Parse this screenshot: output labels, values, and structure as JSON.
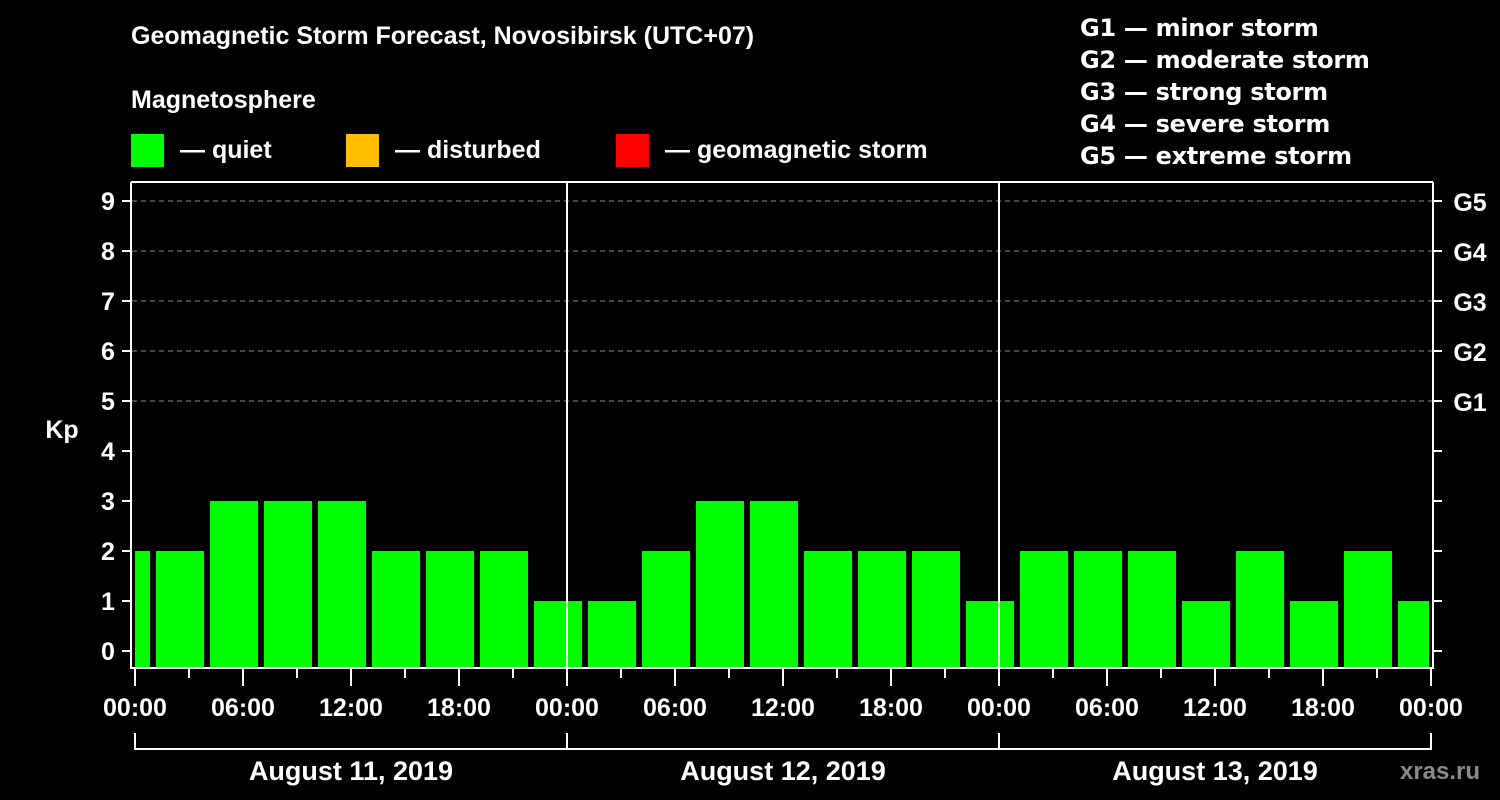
{
  "title": "Geomagnetic Storm Forecast, Novosibirsk (UTC+07)",
  "magnetosphere_label": "Magnetosphere",
  "legend": [
    {
      "label": "— quiet",
      "color": "#00ff00"
    },
    {
      "label": "— disturbed",
      "color": "#ffbf00"
    },
    {
      "label": "— geomagnetic storm",
      "color": "#ff0000"
    }
  ],
  "g_scale": [
    "G1 — minor storm",
    "G2 — moderate storm",
    "G3 — strong storm",
    "G4 — severe storm",
    "G5 — extreme storm"
  ],
  "watermark": "xras.ru",
  "chart_data": {
    "type": "bar",
    "title": "Geomagnetic Storm Forecast, Novosibirsk (UTC+07)",
    "xlabel": "",
    "ylabel": "Kp",
    "ylim": [
      0,
      9
    ],
    "yticks": [
      0,
      1,
      2,
      3,
      4,
      5,
      6,
      7,
      8,
      9
    ],
    "right_axis_labels": {
      "5": "G1",
      "6": "G2",
      "7": "G3",
      "8": "G4",
      "9": "G5"
    },
    "grid": "dashed horizontal at Kp 5-9",
    "xtick_labels": [
      "00:00",
      "06:00",
      "12:00",
      "18:00",
      "00:00",
      "06:00",
      "12:00",
      "18:00",
      "00:00",
      "06:00",
      "12:00",
      "18:00",
      "00:00"
    ],
    "date_labels": [
      "August 11, 2019",
      "August 12, 2019",
      "August 13, 2019"
    ],
    "interval_hours": 3,
    "first_interval_start": "August 10, 2019 22:00",
    "categories": [
      "22:00",
      "01:00",
      "04:00",
      "07:00",
      "10:00",
      "13:00",
      "16:00",
      "19:00",
      "22:00",
      "01:00",
      "04:00",
      "07:00",
      "10:00",
      "13:00",
      "16:00",
      "19:00",
      "22:00",
      "01:00",
      "04:00",
      "07:00",
      "10:00",
      "13:00",
      "16:00",
      "19:00",
      "22:00"
    ],
    "values": [
      2,
      2,
      3,
      3,
      3,
      2,
      2,
      2,
      1,
      1,
      2,
      3,
      3,
      2,
      2,
      2,
      1,
      2,
      2,
      2,
      1,
      2,
      1,
      2,
      1
    ],
    "bar_color": "#00ff00",
    "legend": [
      "quiet",
      "disturbed",
      "geomagnetic storm"
    ]
  }
}
